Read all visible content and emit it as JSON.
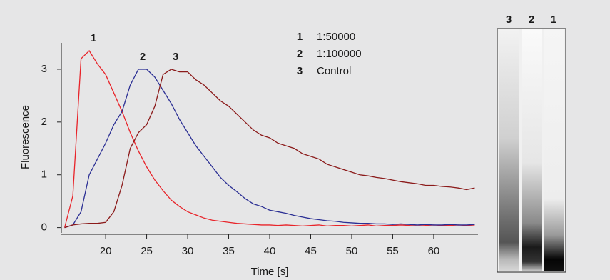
{
  "chart_data": {
    "type": "line",
    "x_label": "Time [s]",
    "y_label": "Fluorescence",
    "x": [
      15,
      16,
      17,
      18,
      19,
      20,
      21,
      22,
      23,
      24,
      25,
      26,
      27,
      28,
      29,
      30,
      31,
      32,
      33,
      34,
      35,
      36,
      37,
      38,
      39,
      40,
      41,
      42,
      43,
      44,
      45,
      46,
      47,
      48,
      49,
      50,
      51,
      52,
      53,
      54,
      55,
      56,
      57,
      58,
      59,
      60,
      61,
      62,
      63,
      64,
      65
    ],
    "series": [
      {
        "name": "1:50000",
        "label": "1",
        "color": "#e8242a",
        "values": [
          0,
          0.6,
          3.2,
          3.35,
          3.1,
          2.9,
          2.55,
          2.2,
          1.8,
          1.45,
          1.15,
          0.9,
          0.7,
          0.52,
          0.4,
          0.3,
          0.24,
          0.18,
          0.14,
          0.12,
          0.1,
          0.08,
          0.07,
          0.06,
          0.05,
          0.05,
          0.04,
          0.05,
          0.04,
          0.03,
          0.04,
          0.05,
          0.03,
          0.04,
          0.04,
          0.03,
          0.04,
          0.05,
          0.03,
          0.04,
          0.04,
          0.05,
          0.04,
          0.03,
          0.04,
          0.05,
          0.04,
          0.04,
          0.05,
          0.04,
          0.05
        ]
      },
      {
        "name": "1:100000",
        "label": "2",
        "color": "#2b2f94",
        "values": [
          0,
          0.05,
          0.3,
          1.0,
          1.3,
          1.6,
          1.95,
          2.2,
          2.7,
          3.0,
          3.0,
          2.85,
          2.6,
          2.35,
          2.05,
          1.8,
          1.55,
          1.35,
          1.15,
          0.95,
          0.8,
          0.68,
          0.55,
          0.45,
          0.4,
          0.33,
          0.3,
          0.27,
          0.23,
          0.2,
          0.17,
          0.15,
          0.13,
          0.12,
          0.1,
          0.09,
          0.08,
          0.08,
          0.07,
          0.07,
          0.06,
          0.07,
          0.06,
          0.05,
          0.06,
          0.05,
          0.05,
          0.06,
          0.05,
          0.05,
          0.06
        ]
      },
      {
        "name": "Control",
        "label": "3",
        "color": "#8b1a1a",
        "values": [
          0,
          0.05,
          0.07,
          0.08,
          0.08,
          0.1,
          0.3,
          0.8,
          1.5,
          1.8,
          1.95,
          2.3,
          2.9,
          3.0,
          2.95,
          2.95,
          2.8,
          2.7,
          2.55,
          2.4,
          2.3,
          2.15,
          2.0,
          1.85,
          1.75,
          1.7,
          1.6,
          1.55,
          1.5,
          1.4,
          1.35,
          1.3,
          1.2,
          1.15,
          1.1,
          1.05,
          1.0,
          0.98,
          0.95,
          0.93,
          0.9,
          0.87,
          0.85,
          0.83,
          0.8,
          0.8,
          0.78,
          0.77,
          0.75,
          0.72,
          0.75
        ]
      }
    ],
    "xlim": [
      14.6,
      65.4
    ],
    "xticks": [
      20,
      25,
      30,
      35,
      40,
      45,
      50,
      55,
      60
    ],
    "ylim": [
      -0.1,
      3.5
    ],
    "yticks": [
      0,
      1,
      2,
      3
    ]
  }
}
